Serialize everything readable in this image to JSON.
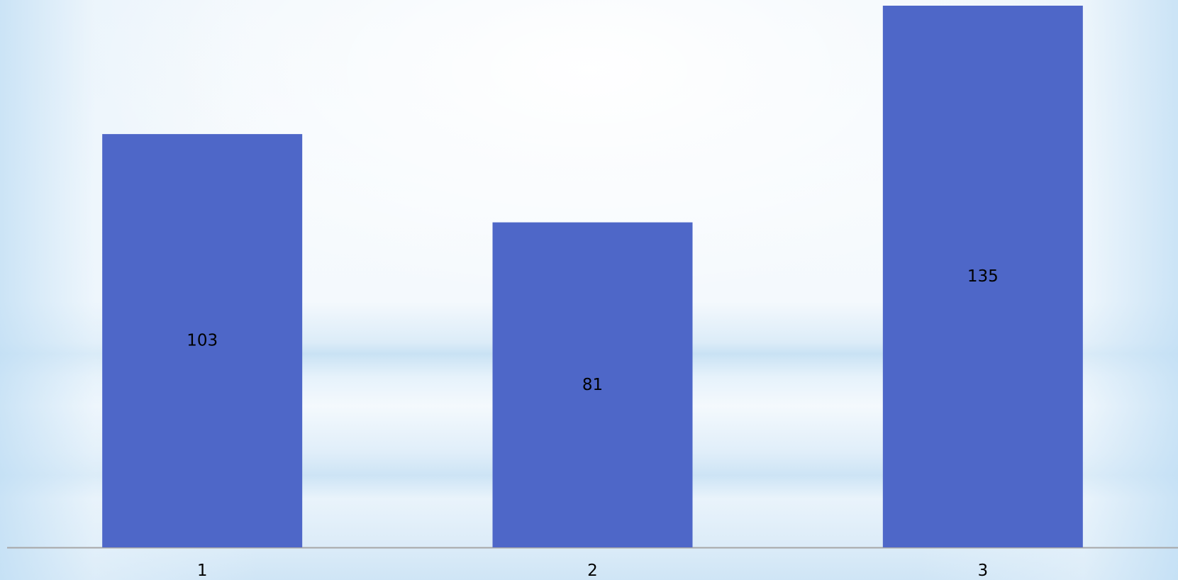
{
  "chart_data": {
    "type": "bar",
    "categories": [
      "1",
      "2",
      "3"
    ],
    "values": [
      103,
      81,
      135
    ],
    "value_labels": [
      "103",
      "81",
      "135"
    ],
    "title": "",
    "xlabel": "",
    "ylabel": "",
    "ylim": [
      0,
      135
    ],
    "grid": false,
    "legend": "none",
    "colors": {
      "bar": "#4e67c8",
      "axis": "#a6a6a6",
      "label_text": "#000000"
    }
  }
}
